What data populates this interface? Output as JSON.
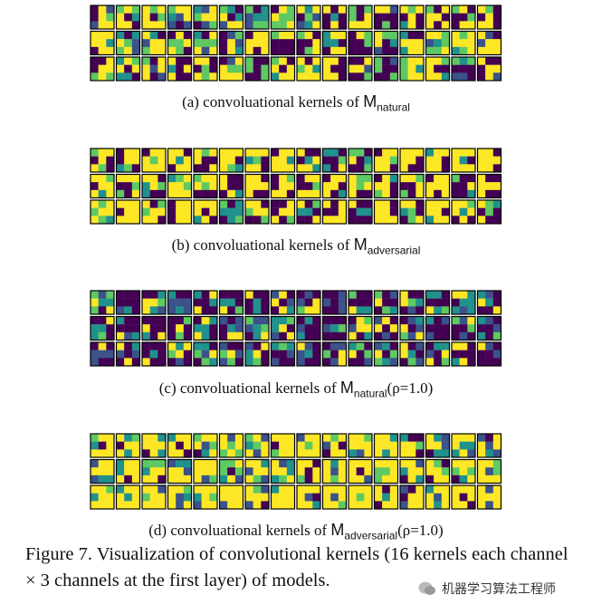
{
  "panels": [
    {
      "caption_prefix": "(a) convoluational kernels of ",
      "model": "M",
      "subscript": "natural",
      "suffix": ""
    },
    {
      "caption_prefix": "(b) convoluational kernels of ",
      "model": "M",
      "subscript": "adversarial",
      "suffix": ""
    },
    {
      "caption_prefix": "(c) convoluational kernels of ",
      "model": "M",
      "subscript": "natural",
      "suffix": "(ρ=1.0)"
    },
    {
      "caption_prefix": "(d) convoluational kernels of ",
      "model": "M",
      "subscript": "adversarial",
      "suffix": "(ρ=1.0)"
    }
  ],
  "figure_caption": "Figure 7. Visualization of convolutional kernels (16 kernels each channel × 3 channels at the first layer) of models.",
  "watermark": "机器学习算法工程师"
}
